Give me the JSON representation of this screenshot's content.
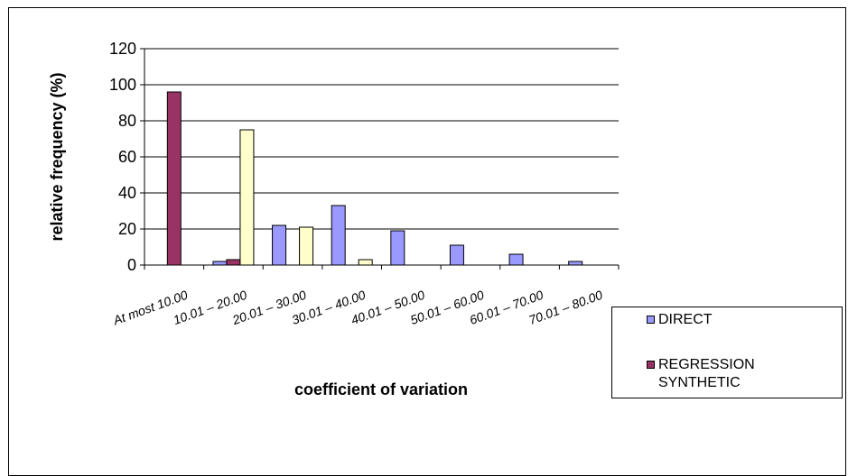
{
  "chart_data": {
    "type": "bar",
    "ylabel": "relative frequency (%)",
    "xlabel": "coefficient of variation",
    "ylim": [
      0,
      120
    ],
    "yticks": [
      0,
      20,
      40,
      60,
      80,
      100,
      120
    ],
    "grid": true,
    "legend_position": "right",
    "categories": [
      "At most 10.00",
      "10.01 – 20.00",
      "20.01 – 30.00",
      "30.01 – 40.00",
      "40.01 – 50.00",
      "50.01 – 60.00",
      "60.01 – 70.00",
      "70.01 – 80.00"
    ],
    "series": [
      {
        "name": "DIRECT",
        "color": "#9999ff",
        "values": [
          0,
          2,
          22,
          33,
          19,
          11,
          6,
          2
        ]
      },
      {
        "name": "REGRESSION SYNTHETIC",
        "color": "#993366",
        "values": [
          96,
          3,
          0,
          0,
          0,
          0,
          0,
          0
        ]
      },
      {
        "color": "#ffffcc",
        "values": [
          0,
          75,
          21,
          3,
          0,
          0,
          0,
          0
        ]
      }
    ]
  }
}
